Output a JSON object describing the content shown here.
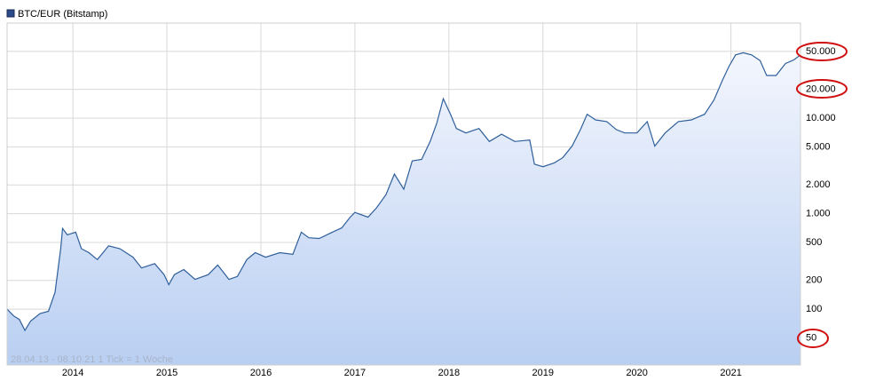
{
  "chart_data": {
    "type": "line",
    "log_scale": true,
    "grid": true,
    "series": [
      {
        "name": "BTC/EUR (Bitstamp)",
        "color": "#2f5f9a",
        "x": [
          2013.3,
          2013.37,
          2013.43,
          2013.49,
          2013.55,
          2013.65,
          2013.74,
          2013.81,
          2013.87,
          2013.89,
          2013.94,
          2014.03,
          2014.09,
          2014.17,
          2014.26,
          2014.38,
          2014.5,
          2014.64,
          2014.73,
          2014.87,
          2014.97,
          2015.02,
          2015.08,
          2015.18,
          2015.3,
          2015.44,
          2015.54,
          2015.66,
          2015.75,
          2015.85,
          2015.94,
          2016.05,
          2016.2,
          2016.34,
          2016.43,
          2016.51,
          2016.62,
          2016.76,
          2016.86,
          2016.95,
          2017.0,
          2017.14,
          2017.23,
          2017.33,
          2017.42,
          2017.52,
          2017.61,
          2017.71,
          2017.8,
          2017.87,
          2017.94,
          2018.02,
          2018.08,
          2018.18,
          2018.32,
          2018.43,
          2018.56,
          2018.7,
          2018.86,
          2018.91,
          2019.0,
          2019.12,
          2019.21,
          2019.31,
          2019.4,
          2019.47,
          2019.56,
          2019.68,
          2019.78,
          2019.87,
          2020.0,
          2020.11,
          2020.19,
          2020.3,
          2020.44,
          2020.58,
          2020.72,
          2020.82,
          2020.91,
          2020.98,
          2021.05,
          2021.13,
          2021.22,
          2021.31,
          2021.38,
          2021.48,
          2021.58,
          2021.67,
          2021.74
        ],
        "values": [
          100,
          85,
          78,
          60,
          75,
          90,
          95,
          150,
          430,
          700,
          600,
          640,
          430,
          390,
          330,
          460,
          430,
          350,
          270,
          300,
          230,
          180,
          230,
          260,
          205,
          230,
          290,
          205,
          220,
          330,
          390,
          350,
          390,
          375,
          640,
          560,
          550,
          640,
          710,
          920,
          1030,
          920,
          1150,
          1580,
          2600,
          1800,
          3570,
          3700,
          5700,
          8800,
          16000,
          10800,
          7800,
          7000,
          7800,
          5700,
          6800,
          5700,
          5900,
          3300,
          3100,
          3400,
          3850,
          5100,
          7600,
          11000,
          9600,
          9200,
          7600,
          7000,
          7000,
          9200,
          5100,
          7000,
          9200,
          9600,
          11000,
          15500,
          25000,
          35000,
          46000,
          48400,
          46000,
          40000,
          28000,
          28000,
          37400,
          40800,
          46000
        ]
      }
    ],
    "xlim": [
      2013.3,
      2021.74
    ],
    "xticks": [
      2014,
      2015,
      2016,
      2017,
      2018,
      2019,
      2020,
      2021
    ],
    "ylim": [
      26,
      99000
    ],
    "yticks": [
      50,
      100,
      200,
      500,
      {
        "value": 1000,
        "label": "1.000"
      },
      {
        "value": 2000,
        "label": "2.000"
      },
      {
        "value": 5000,
        "label": "5.000"
      },
      {
        "value": 10000,
        "label": "10.000"
      },
      {
        "value": 20000,
        "label": "20.000"
      },
      {
        "value": 50000,
        "label": "50.000"
      }
    ],
    "annotation": "28.04.13 - 08.10.21   1 Tick = 1 Woche"
  }
}
